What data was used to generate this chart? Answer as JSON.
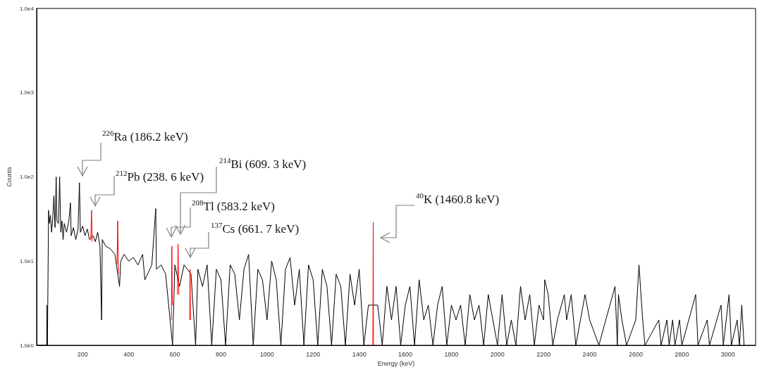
{
  "chart_data": {
    "type": "line",
    "xlabel": "Energy (keV)",
    "ylabel": "Counts",
    "log": "y",
    "grid": false,
    "marker": "none",
    "line_style": "solid",
    "xlim": [
      0,
      3120
    ],
    "xticks": [
      200,
      400,
      600,
      800,
      1000,
      1200,
      1400,
      1600,
      1800,
      2000,
      2200,
      2400,
      2600,
      2800,
      3000
    ],
    "ylim": [
      1,
      10000
    ],
    "yticks": [
      {
        "value": 1,
        "label": "1.0e0"
      },
      {
        "value": 10,
        "label": "1.0e1"
      },
      {
        "value": 100,
        "label": "1.0e2"
      },
      {
        "value": 1000,
        "label": "1.0e3"
      },
      {
        "value": 10000,
        "label": "1.0e4"
      }
    ],
    "series": [
      {
        "color": "#000000",
        "x": [
          0,
          44,
          45,
          47,
          52,
          55,
          60,
          65,
          70,
          75,
          80,
          85,
          88,
          95,
          100,
          105,
          110,
          115,
          120,
          130,
          140,
          147,
          150,
          160,
          170,
          180,
          186,
          190,
          200,
          210,
          220,
          230,
          245,
          255,
          265,
          275,
          282,
          285,
          300,
          320,
          340,
          360,
          365,
          380,
          400,
          420,
          440,
          460,
          470,
          500,
          517,
          520,
          540,
          560,
          590,
          600,
          620,
          640,
          670,
          690,
          700,
          720,
          740,
          760,
          780,
          800,
          820,
          840,
          860,
          880,
          900,
          920,
          940,
          960,
          980,
          1000,
          1020,
          1040,
          1060,
          1080,
          1100,
          1120,
          1140,
          1160,
          1180,
          1200,
          1220,
          1240,
          1260,
          1280,
          1300,
          1320,
          1340,
          1360,
          1380,
          1400,
          1420,
          1440,
          1480,
          1500,
          1520,
          1540,
          1560,
          1580,
          1600,
          1620,
          1640,
          1660,
          1680,
          1700,
          1720,
          1740,
          1760,
          1780,
          1800,
          1820,
          1840,
          1860,
          1880,
          1900,
          1920,
          1940,
          1960,
          1980,
          2000,
          2020,
          2040,
          2060,
          2080,
          2100,
          2120,
          2140,
          2160,
          2180,
          2200,
          2205,
          2220,
          2240,
          2260,
          2290,
          2300,
          2320,
          2340,
          2380,
          2400,
          2440,
          2470,
          2510,
          2520,
          2525,
          2540,
          2560,
          2600,
          2614,
          2630,
          2640,
          2700,
          2710,
          2735,
          2745,
          2760,
          2770,
          2790,
          2800,
          2860,
          2870,
          2910,
          2920,
          2970,
          2980,
          3005,
          3015,
          3040,
          3050,
          3060,
          3070
        ],
        "values": [
          1,
          1,
          3,
          1,
          40,
          28,
          35,
          22,
          32,
          60,
          25,
          100,
          30,
          28,
          100,
          22,
          30,
          18,
          28,
          22,
          30,
          49,
          20,
          25,
          18,
          24,
          85,
          22,
          26,
          20,
          24,
          18,
          20,
          17,
          22,
          15,
          2,
          18,
          15,
          14,
          12,
          5,
          10,
          12,
          10,
          11,
          9,
          12,
          6,
          9,
          42,
          8,
          9,
          7,
          1,
          9,
          5,
          9,
          7,
          1,
          8,
          5,
          9,
          1,
          8,
          6,
          1,
          9,
          7,
          2,
          8,
          12,
          1,
          8,
          6,
          2,
          10,
          6,
          1,
          8,
          11,
          3,
          8,
          1,
          9,
          6,
          1,
          8,
          5,
          1,
          7,
          5,
          1,
          7,
          3,
          8,
          1,
          3,
          3,
          1,
          5,
          2,
          5,
          1,
          3,
          5,
          1,
          6,
          2,
          3,
          1,
          3,
          5,
          1,
          3,
          2,
          3,
          1,
          4,
          2,
          3,
          1,
          4,
          2,
          1,
          4,
          1,
          2,
          1,
          5,
          2,
          4,
          1,
          3,
          2,
          6,
          4,
          1,
          2,
          4,
          2,
          4,
          1,
          4,
          2,
          1,
          2,
          5,
          1,
          4,
          2,
          1,
          2,
          9,
          2,
          1,
          2,
          1,
          2,
          1,
          2,
          1,
          2,
          1,
          4,
          1,
          2,
          1,
          3,
          1,
          4,
          1,
          2,
          1,
          3,
          1
        ]
      },
      {
        "color": "#ff0000",
        "x": [
          235,
          238.6,
          241,
          242,
          349,
          352,
          355,
          356,
          585,
          587,
          589,
          590,
          611,
          614,
          617,
          618,
          664,
          666,
          668,
          669,
          1459,
          1460.8,
          1462
        ],
        "values": [
          18,
          40,
          17,
          null,
          9,
          30,
          7,
          null,
          2,
          15,
          3,
          null,
          4,
          16,
          4,
          null,
          2,
          8,
          2,
          null,
          1,
          29,
          1
        ]
      }
    ],
    "annotations": [
      "$^{226}$Ra (186.2 keV)",
      "$^{212}$Pb (238. 6 keV)",
      "$^{214}$Bi (609. 3 keV)",
      "$^{208}$Tl (583.2 keV)",
      "$^{137}$Cs (661. 7 keV)",
      "$^{40}$K (1460.8 keV)"
    ]
  }
}
